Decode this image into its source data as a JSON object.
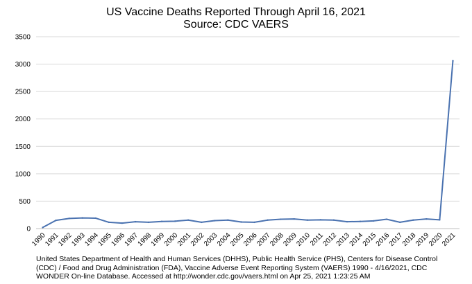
{
  "chart_data": {
    "type": "line",
    "title": "US Vaccine Deaths Reported Through April 16, 2021",
    "subtitle": "Source: CDC VAERS",
    "xlabel": "",
    "ylabel": "",
    "ylim": [
      0,
      3500
    ],
    "yticks": [
      0,
      500,
      1000,
      1500,
      2000,
      2500,
      3000,
      3500
    ],
    "grid": true,
    "legend": "none",
    "line_color": "#4a72b0",
    "x": [
      "1990",
      "1991",
      "1992",
      "1993",
      "1994",
      "1995",
      "1996",
      "1997",
      "1998",
      "1999",
      "2000",
      "2001",
      "2002",
      "2003",
      "2004",
      "2005",
      "2006",
      "2007",
      "2008",
      "2009",
      "2010",
      "2011",
      "2012",
      "2013",
      "2014",
      "2015",
      "2016",
      "2017",
      "2018",
      "2019",
      "2020",
      "2021"
    ],
    "values": [
      20,
      150,
      185,
      195,
      190,
      115,
      100,
      125,
      115,
      130,
      135,
      155,
      115,
      145,
      155,
      120,
      115,
      155,
      170,
      175,
      155,
      160,
      155,
      125,
      130,
      140,
      170,
      115,
      155,
      175,
      160,
      3060
    ]
  },
  "footnote": "United States Department of Health and Human Services (DHHS), Public Health Service (PHS), Centers for Disease Control (CDC) / Food and Drug Administration (FDA), Vaccine Adverse Event Reporting System (VAERS) 1990 - 4/16/2021, CDC WONDER On-line Database. Accessed at http://wonder.cdc.gov/vaers.html on Apr 25, 2021 1:23:25 AM"
}
